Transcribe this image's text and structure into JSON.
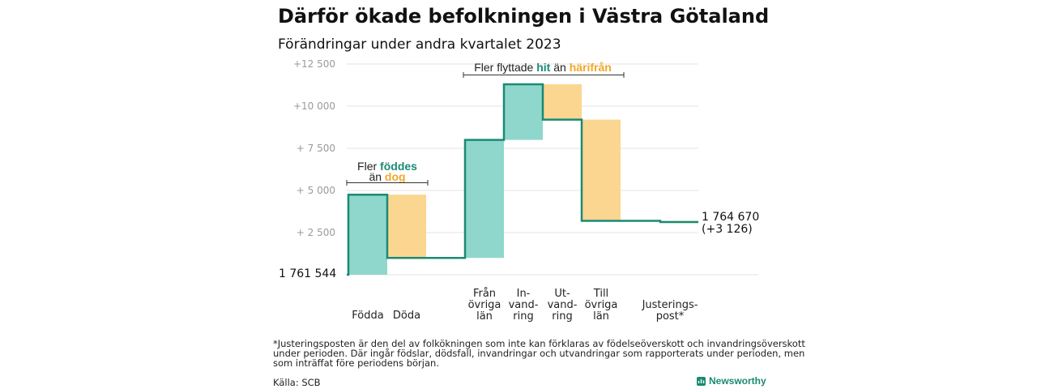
{
  "header": {
    "title": "Därför ökade befolkningen i Västra Götaland",
    "subtitle": "Förändringar under andra kvartalet 2023"
  },
  "colors": {
    "increase": "#8fd6cc",
    "decrease": "#fbd691",
    "step_line": "#1b8a74",
    "teal_text": "#1b8a74",
    "orange_text": "#f0a82a",
    "grid": "#e3e3e3"
  },
  "chart_data": {
    "type": "waterfall",
    "title": "Därför ökade befolkningen i Västra Götaland",
    "subtitle": "Förändringar under andra kvartalet 2023",
    "baseline_label": "1  761   544",
    "ylim": [
      0,
      12500
    ],
    "yticks": [
      {
        "value": 2500,
        "label": "+  2  500"
      },
      {
        "value": 5000,
        "label": "+  5  000"
      },
      {
        "value": 7500,
        "label": "+  7  500"
      },
      {
        "value": 10000,
        "label": "+10   000"
      },
      {
        "value": 12500,
        "label": "+12   500"
      }
    ],
    "grid": true,
    "steps": [
      {
        "label": "Födda",
        "from": 0,
        "to": 4750,
        "kind": "increase"
      },
      {
        "label": "Döda",
        "from": 4750,
        "to": 1000,
        "kind": "decrease"
      },
      {
        "label": "Från\növriga\nlän",
        "from": 1000,
        "to": 8000,
        "kind": "increase"
      },
      {
        "label": "In-\nvand-\nring",
        "from": 8000,
        "to": 11300,
        "kind": "increase"
      },
      {
        "label": "Ut-\nvand-\nring",
        "from": 11300,
        "to": 9200,
        "kind": "decrease"
      },
      {
        "label": "Till\növriga\nlän",
        "from": 9200,
        "to": 3200,
        "kind": "decrease"
      },
      {
        "label": "Justerings-\npost*",
        "from": 3200,
        "to": 3126,
        "kind": "decrease"
      }
    ],
    "end_label": {
      "value": "1 764 670",
      "change": "(+3 126)"
    },
    "annotations": {
      "births": {
        "line1_pre": "Fler ",
        "line1_strong": "föddes",
        "line2_pre": "än ",
        "line2_strong": "dog"
      },
      "moves": {
        "pre": "Fler flyttade ",
        "strong1": "hit",
        "mid": "  än ",
        "strong2": "härifrån"
      }
    }
  },
  "footer": {
    "footnote_lines": [
      "*Justeringsposten är den del av folkökningen som inte kan förklaras av födelseöverskott och invandringsöverskott",
      "under perioden. Där ingår födslar, dödsfall, invandringar och utvandringar som rapporterats under perioden, men",
      "som inträffat före periodens början."
    ],
    "source": "Källa: SCB",
    "brand": "Newsworthy"
  }
}
